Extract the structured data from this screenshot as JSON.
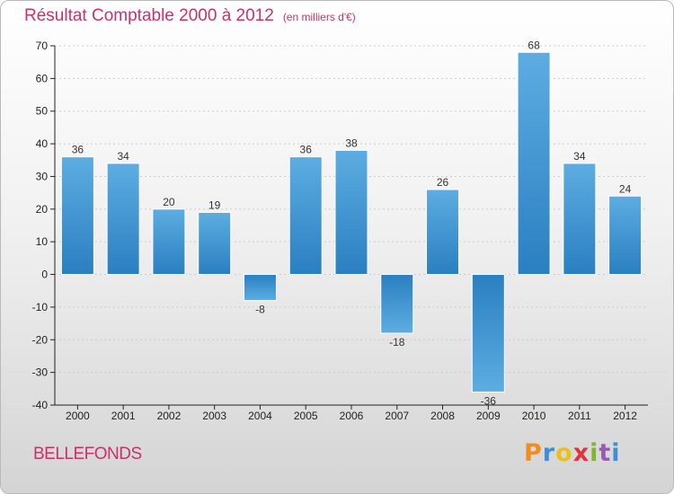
{
  "header": {
    "title": "Résultat Comptable 2000 à 2012",
    "subtitle": "(en milliers d'€)"
  },
  "footer": {
    "commune": "BELLEFONDS",
    "logo_letters": [
      "P",
      "r",
      "o",
      "x",
      "i",
      "t",
      "i"
    ],
    "logo_colors": [
      "#f28c1e",
      "#3a8fd9",
      "#e8c21b",
      "#e0333a",
      "#7cb72d",
      "#9b59b6",
      "#3a8fd9"
    ]
  },
  "colors": {
    "bar_light": "#5dade2",
    "bar_dark": "#2a7fc0",
    "axis": "#222222",
    "grid": "#cccccc"
  },
  "chart_data": {
    "type": "bar",
    "title": "Résultat Comptable 2000 à 2012",
    "subtitle": "(en milliers d'€)",
    "xlabel": "",
    "ylabel": "",
    "categories": [
      "2000",
      "2001",
      "2002",
      "2003",
      "2004",
      "2005",
      "2006",
      "2007",
      "2008",
      "2009",
      "2010",
      "2011",
      "2012"
    ],
    "values": [
      36,
      34,
      20,
      19,
      -8,
      36,
      38,
      -18,
      26,
      -36,
      68,
      34,
      24
    ],
    "ylim": [
      -40,
      70
    ],
    "yticks": [
      -40,
      -30,
      -20,
      -10,
      0,
      10,
      20,
      30,
      40,
      50,
      60,
      70
    ],
    "grid": true
  }
}
